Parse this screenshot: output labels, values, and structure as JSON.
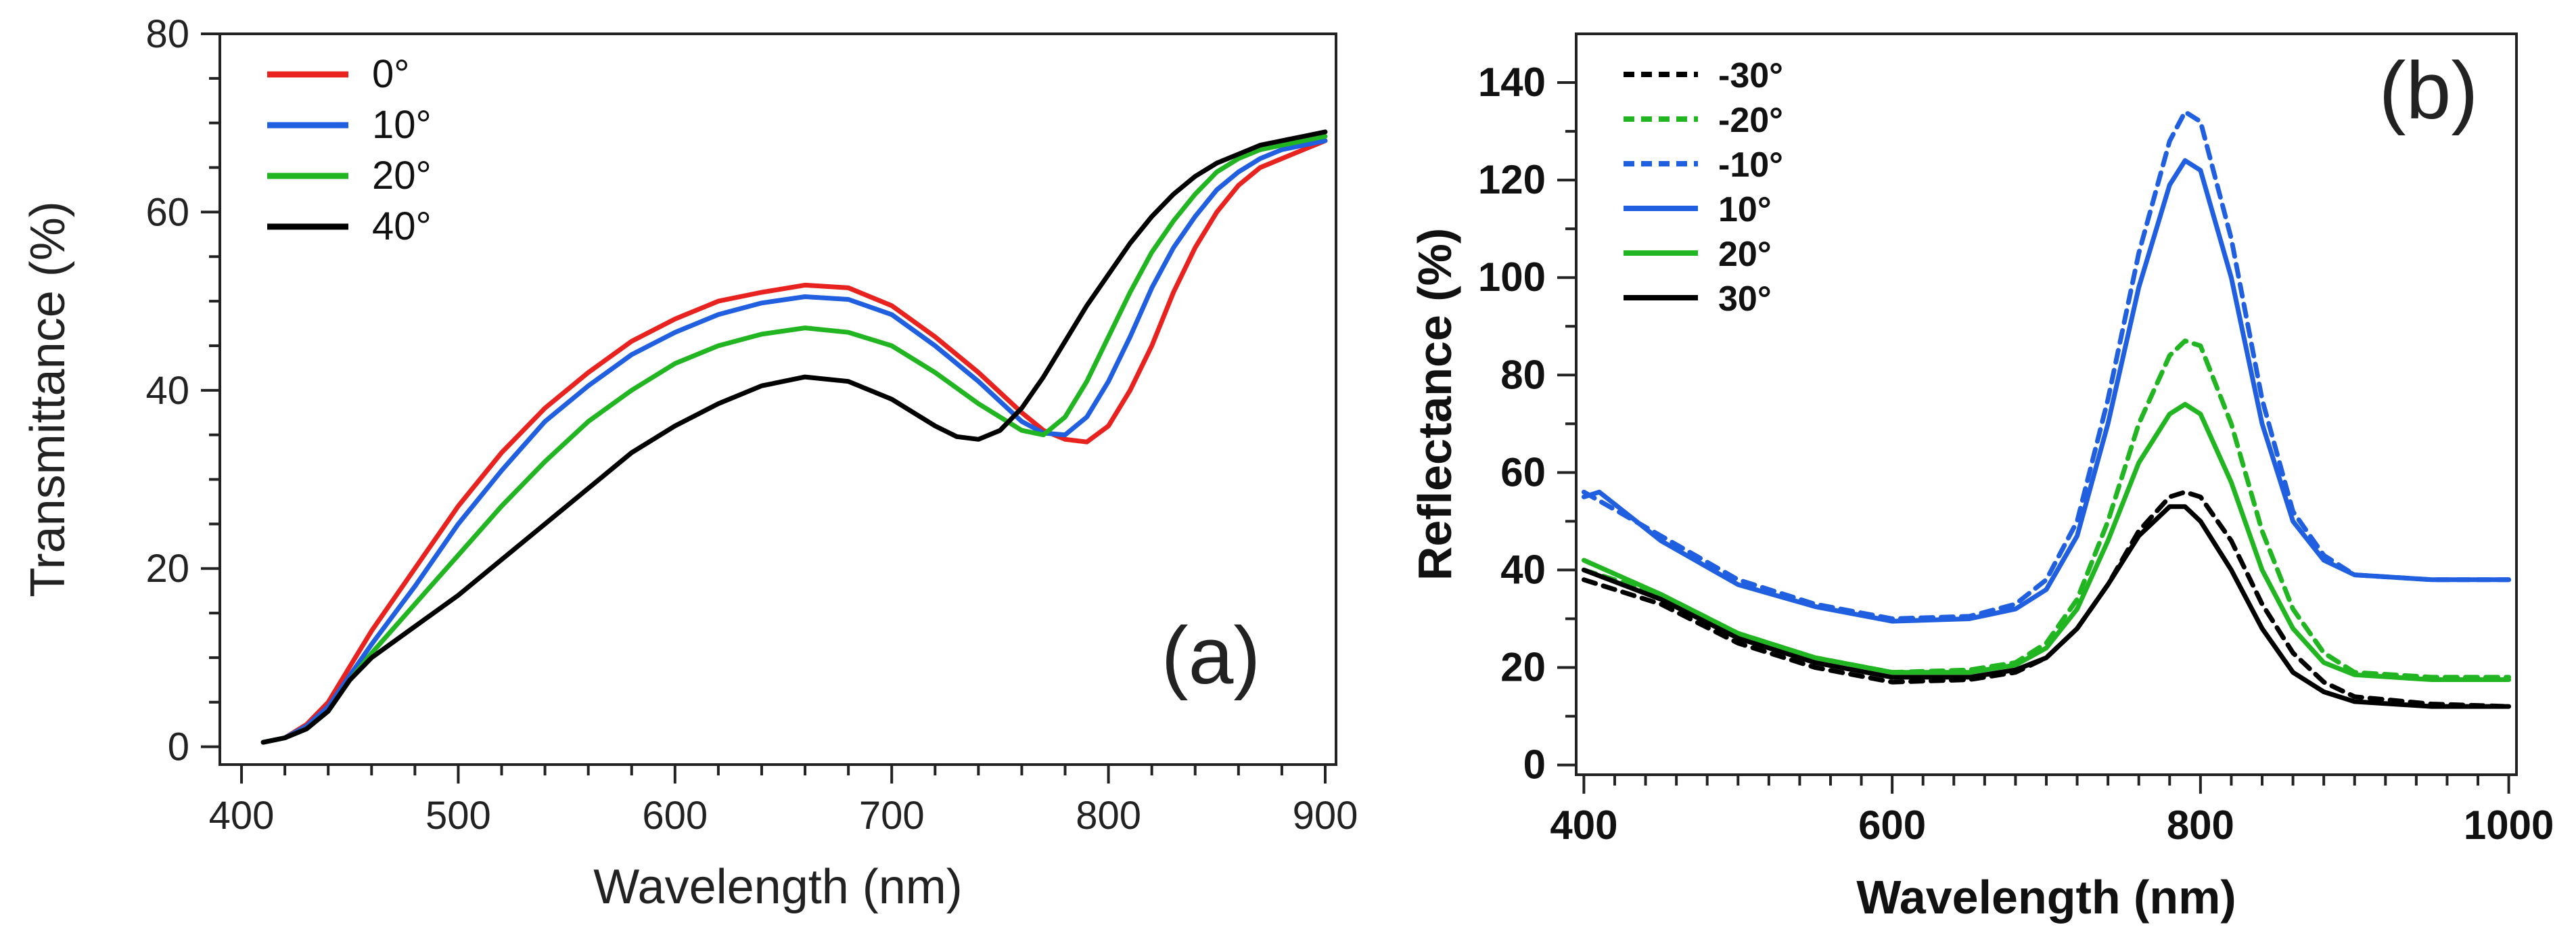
{
  "chart_data": [
    {
      "type": "line",
      "panel_label": "(a)",
      "xlabel": "Wavelength (nm)",
      "ylabel": "Transmittance (%)",
      "xlim": [
        390,
        905
      ],
      "ylim": [
        -2,
        80
      ],
      "xticks": [
        400,
        500,
        600,
        700,
        800,
        900
      ],
      "yticks": [
        0,
        20,
        40,
        60,
        80
      ],
      "legend_position": "top-left",
      "series": [
        {
          "name": "0°",
          "color": "#e8231f",
          "dash": "solid",
          "x": [
            410,
            420,
            430,
            440,
            450,
            460,
            480,
            500,
            520,
            540,
            560,
            580,
            600,
            620,
            640,
            660,
            680,
            700,
            720,
            740,
            760,
            770,
            780,
            790,
            800,
            810,
            820,
            830,
            840,
            850,
            860,
            870,
            880,
            890,
            900
          ],
          "y": [
            0.5,
            1,
            2.5,
            5,
            9,
            13,
            20,
            27,
            33,
            38,
            42,
            45.5,
            48,
            50,
            51,
            51.8,
            51.5,
            49.5,
            46,
            42,
            37.5,
            35.5,
            34.5,
            34.2,
            36,
            40,
            45,
            51,
            56,
            60,
            63,
            65,
            66,
            67,
            68
          ]
        },
        {
          "name": "10°",
          "color": "#1f5fe0",
          "dash": "solid",
          "x": [
            410,
            420,
            430,
            440,
            450,
            460,
            480,
            500,
            520,
            540,
            560,
            580,
            600,
            620,
            640,
            660,
            680,
            700,
            720,
            740,
            760,
            770,
            780,
            790,
            800,
            810,
            820,
            830,
            840,
            850,
            860,
            870,
            880,
            890,
            900
          ],
          "y": [
            0.5,
            1,
            2.3,
            4.5,
            8,
            11.5,
            18,
            25,
            31,
            36.5,
            40.5,
            44,
            46.5,
            48.5,
            49.8,
            50.5,
            50.2,
            48.5,
            45,
            41,
            36.5,
            35.2,
            35,
            37,
            41,
            46,
            51.5,
            56,
            59.5,
            62.5,
            64.5,
            66,
            67,
            67.5,
            68
          ]
        },
        {
          "name": "20°",
          "color": "#21b521",
          "dash": "solid",
          "x": [
            410,
            420,
            430,
            440,
            450,
            460,
            480,
            500,
            520,
            540,
            560,
            580,
            600,
            620,
            640,
            660,
            680,
            700,
            720,
            740,
            760,
            770,
            780,
            790,
            800,
            810,
            820,
            830,
            840,
            850,
            860,
            870,
            880,
            890,
            900
          ],
          "y": [
            0.5,
            1,
            2,
            4,
            7.5,
            10.5,
            16,
            21.5,
            27,
            32,
            36.5,
            40,
            43,
            45,
            46.3,
            47,
            46.5,
            45,
            42,
            38.5,
            35.5,
            35,
            37,
            41,
            46,
            51,
            55.5,
            59,
            62,
            64.5,
            66,
            67,
            67.5,
            68,
            68.5
          ]
        },
        {
          "name": "40°",
          "color": "#000000",
          "dash": "solid",
          "x": [
            410,
            420,
            430,
            440,
            450,
            460,
            480,
            500,
            520,
            540,
            560,
            580,
            600,
            620,
            640,
            660,
            680,
            700,
            720,
            730,
            740,
            750,
            760,
            770,
            780,
            790,
            800,
            810,
            820,
            830,
            840,
            850,
            860,
            870,
            880,
            890,
            900
          ],
          "y": [
            0.5,
            1,
            2,
            4,
            7.5,
            10,
            13.5,
            17,
            21,
            25,
            29,
            33,
            36,
            38.5,
            40.5,
            41.5,
            41,
            39,
            36,
            34.8,
            34.5,
            35.5,
            38,
            41.5,
            45.5,
            49.5,
            53,
            56.5,
            59.5,
            62,
            64,
            65.5,
            66.5,
            67.5,
            68,
            68.5,
            69
          ]
        }
      ]
    },
    {
      "type": "line",
      "panel_label": "(b)",
      "xlabel": "Wavelength (nm)",
      "ylabel": "Reflectance (%)",
      "xlim": [
        395,
        1005
      ],
      "ylim": [
        -2,
        150
      ],
      "xticks": [
        400,
        600,
        800,
        1000
      ],
      "yticks": [
        0,
        20,
        40,
        60,
        80,
        100,
        120,
        140
      ],
      "legend_position": "top-left",
      "series": [
        {
          "name": "-30°",
          "color": "#000000",
          "dash": "dashed",
          "x": [
            400,
            450,
            500,
            550,
            600,
            650,
            680,
            700,
            720,
            740,
            760,
            780,
            790,
            800,
            820,
            840,
            860,
            880,
            900,
            950,
            1000
          ],
          "y": [
            38,
            33,
            25,
            20,
            17,
            17.5,
            19,
            22,
            28,
            37,
            48,
            55,
            56,
            55,
            46,
            33,
            23,
            17,
            14,
            12.5,
            12
          ]
        },
        {
          "name": "-20°",
          "color": "#21b521",
          "dash": "dashed",
          "x": [
            400,
            450,
            500,
            550,
            600,
            650,
            680,
            700,
            720,
            740,
            760,
            780,
            790,
            800,
            820,
            840,
            860,
            880,
            900,
            950,
            1000
          ],
          "y": [
            40,
            35,
            27,
            22,
            19,
            19.5,
            21,
            25,
            34,
            50,
            70,
            84,
            87,
            86,
            70,
            48,
            32,
            23,
            19,
            18,
            18
          ]
        },
        {
          "name": "-10°",
          "color": "#1f5fe0",
          "dash": "dashed",
          "x": [
            400,
            450,
            500,
            550,
            600,
            650,
            680,
            700,
            720,
            740,
            760,
            780,
            790,
            800,
            820,
            840,
            860,
            880,
            900,
            950,
            1000
          ],
          "y": [
            56,
            47,
            38,
            33,
            30,
            30.5,
            33,
            38,
            50,
            75,
            105,
            128,
            134,
            132,
            108,
            75,
            52,
            43,
            39,
            38,
            38
          ]
        },
        {
          "name": "10°",
          "color": "#1f5fe0",
          "dash": "solid",
          "x": [
            400,
            410,
            450,
            500,
            550,
            600,
            650,
            680,
            700,
            720,
            740,
            760,
            780,
            790,
            800,
            820,
            840,
            860,
            880,
            900,
            950,
            1000
          ],
          "y": [
            55,
            56,
            46,
            37,
            32.5,
            29.5,
            30,
            32,
            36,
            47,
            70,
            98,
            119,
            124,
            122,
            100,
            70,
            50,
            42,
            39,
            38,
            38
          ]
        },
        {
          "name": "20°",
          "color": "#21b521",
          "dash": "solid",
          "x": [
            400,
            450,
            500,
            550,
            600,
            650,
            680,
            700,
            720,
            740,
            760,
            780,
            790,
            800,
            820,
            840,
            860,
            880,
            900,
            950,
            1000
          ],
          "y": [
            42,
            35,
            27,
            22,
            19,
            19,
            20.5,
            24,
            32,
            46,
            62,
            72,
            74,
            72,
            58,
            40,
            28,
            21,
            18.5,
            17.5,
            17.5
          ]
        },
        {
          "name": "30°",
          "color": "#000000",
          "dash": "solid",
          "x": [
            400,
            450,
            500,
            550,
            600,
            650,
            680,
            700,
            720,
            740,
            760,
            780,
            790,
            800,
            820,
            840,
            860,
            880,
            900,
            950,
            1000
          ],
          "y": [
            40,
            34,
            26,
            21,
            18,
            18,
            19.5,
            22,
            28,
            37,
            47,
            53,
            53,
            50,
            40,
            28,
            19,
            15,
            13,
            12,
            12
          ]
        }
      ]
    }
  ]
}
